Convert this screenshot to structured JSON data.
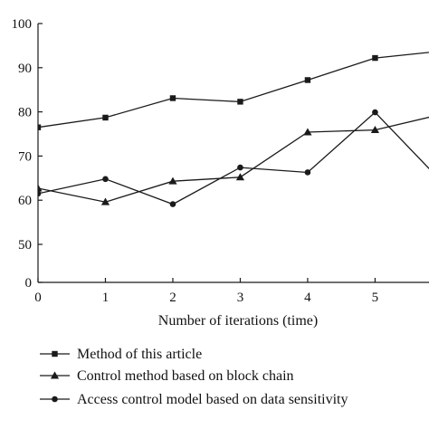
{
  "chart_data": {
    "type": "line",
    "title": "",
    "xlabel": "Number of iterations (time)",
    "ylabel": "",
    "x": [
      0,
      1,
      2,
      3,
      4,
      5,
      6
    ],
    "xlim": [
      0,
      5.8
    ],
    "ylim": [
      0,
      100
    ],
    "x_ticks": [
      0,
      1,
      2,
      3,
      4,
      5
    ],
    "y_ticks": [
      0,
      50,
      60,
      70,
      80,
      90,
      100
    ],
    "grid": false,
    "legend_position": "bottom",
    "series": [
      {
        "name": "Method of this article",
        "marker": "square",
        "values": [
          76.5,
          78.7,
          83.1,
          82.3,
          87.2,
          92.2,
          93.8
        ]
      },
      {
        "name": "Control method based on block chain",
        "marker": "triangle",
        "values": [
          62.7,
          59.6,
          64.3,
          65.2,
          75.4,
          75.9,
          79.5
        ]
      },
      {
        "name": "Access control model based on data sensitivity",
        "marker": "circle",
        "values": [
          61.5,
          64.8,
          59.1,
          67.4,
          66.3,
          79.9,
          64.0
        ]
      }
    ]
  }
}
